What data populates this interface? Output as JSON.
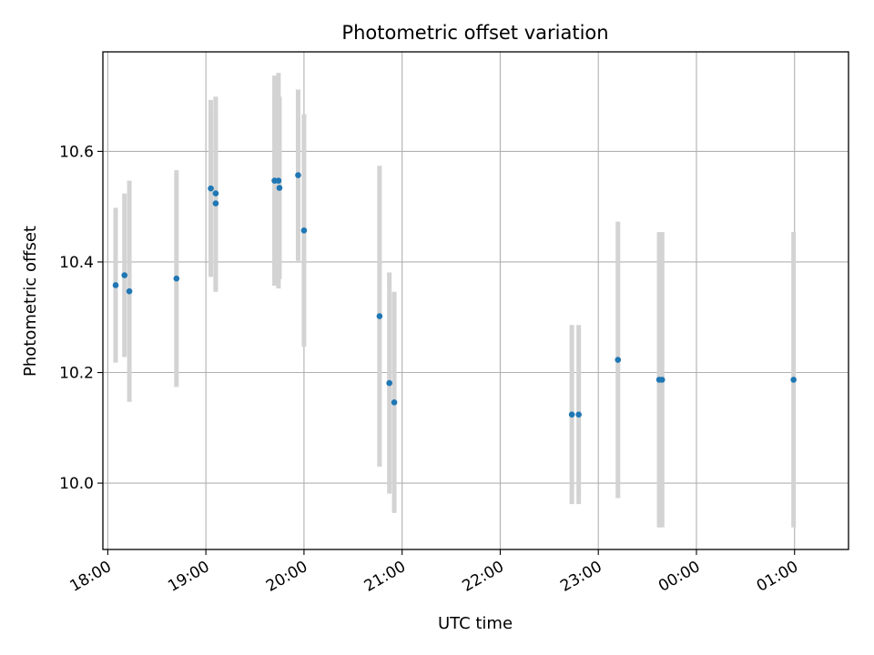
{
  "chart_data": {
    "type": "scatter",
    "title": "Photometric offset variation",
    "xlabel": "UTC time",
    "ylabel": "Photometric offset",
    "x_unit": "hours (UTC, continuing past midnight)",
    "xlim": [
      17.95,
      25.55
    ],
    "ylim": [
      9.88,
      10.78
    ],
    "x_ticks": [
      {
        "value": 18,
        "label": "18:00"
      },
      {
        "value": 19,
        "label": "19:00"
      },
      {
        "value": 20,
        "label": "20:00"
      },
      {
        "value": 21,
        "label": "21:00"
      },
      {
        "value": 22,
        "label": "22:00"
      },
      {
        "value": 23,
        "label": "23:00"
      },
      {
        "value": 24,
        "label": "00:00"
      },
      {
        "value": 25,
        "label": "01:00"
      }
    ],
    "y_ticks": [
      {
        "value": 10.0,
        "label": "10.0"
      },
      {
        "value": 10.2,
        "label": "10.2"
      },
      {
        "value": 10.4,
        "label": "10.4"
      },
      {
        "value": 10.6,
        "label": "10.6"
      }
    ],
    "grid": true,
    "point_color": "#1f77b4",
    "errorbar_color": "#d3d3d3",
    "points": [
      {
        "x": 18.08,
        "y": 10.358,
        "err": 0.14
      },
      {
        "x": 18.17,
        "y": 10.376,
        "err": 0.148
      },
      {
        "x": 18.22,
        "y": 10.347,
        "err": 0.2
      },
      {
        "x": 18.7,
        "y": 10.37,
        "err": 0.196
      },
      {
        "x": 19.05,
        "y": 10.533,
        "err": 0.16
      },
      {
        "x": 19.1,
        "y": 10.524,
        "err": 0.175
      },
      {
        "x": 19.1,
        "y": 10.506,
        "err": 0.16
      },
      {
        "x": 19.7,
        "y": 10.547,
        "err": 0.19
      },
      {
        "x": 19.74,
        "y": 10.547,
        "err": 0.195
      },
      {
        "x": 19.75,
        "y": 10.534,
        "err": 0.165
      },
      {
        "x": 19.94,
        "y": 10.557,
        "err": 0.155
      },
      {
        "x": 20.0,
        "y": 10.457,
        "err": 0.21
      },
      {
        "x": 20.77,
        "y": 10.302,
        "err": 0.272
      },
      {
        "x": 20.87,
        "y": 10.181,
        "err": 0.2
      },
      {
        "x": 20.92,
        "y": 10.146,
        "err": 0.2
      },
      {
        "x": 22.73,
        "y": 10.124,
        "err": 0.162
      },
      {
        "x": 22.8,
        "y": 10.124,
        "err": 0.162
      },
      {
        "x": 23.2,
        "y": 10.223,
        "err": 0.25
      },
      {
        "x": 23.62,
        "y": 10.187,
        "err": 0.267
      },
      {
        "x": 23.65,
        "y": 10.187,
        "err": 0.267
      },
      {
        "x": 24.99,
        "y": 10.187,
        "err": 0.267
      }
    ]
  }
}
